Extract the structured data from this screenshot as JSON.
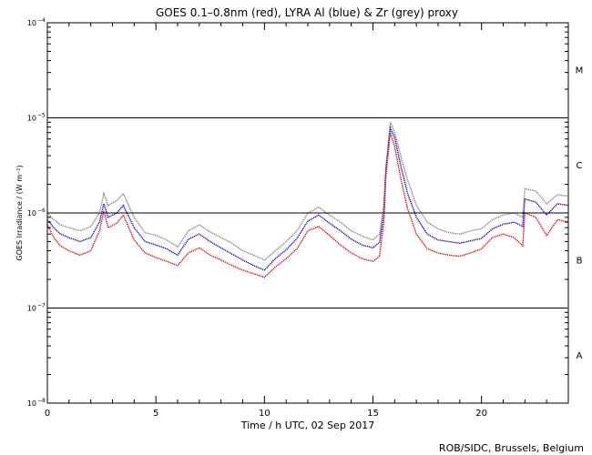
{
  "chart_data": {
    "type": "line",
    "title": "GOES 0.1–0.8nm (red), LYRA Al (blue) & Zr (grey) proxy",
    "xlabel": "Time / h UTC, 02 Sep 2017",
    "ylabel": "GOES Irradiance / (W m⁻²)",
    "xlim": [
      0,
      24
    ],
    "ylim": [
      1e-08,
      0.0001
    ],
    "yscale": "log",
    "grid": false,
    "x_ticks": [
      0,
      5,
      10,
      15,
      20
    ],
    "x_tick_labels": [
      "0",
      "5",
      "10",
      "15",
      "20"
    ],
    "y_ticks": [
      1e-08,
      1e-07,
      1e-06,
      1e-05,
      0.0001
    ],
    "y_tick_labels": [
      {
        "base": "10",
        "exp": "−8"
      },
      {
        "base": "10",
        "exp": "−7"
      },
      {
        "base": "10",
        "exp": "−6"
      },
      {
        "base": "10",
        "exp": "−5"
      },
      {
        "base": "10",
        "exp": "−4"
      }
    ],
    "flare_class_lines": [
      1e-07,
      1e-06,
      1e-05
    ],
    "flare_classes": [
      {
        "label": "A",
        "y": 3.2e-08
      },
      {
        "label": "B",
        "y": 3.2e-07
      },
      {
        "label": "C",
        "y": 3.2e-06
      },
      {
        "label": "M",
        "y": 3.2e-05
      }
    ],
    "series": [
      {
        "color": "#808080",
        "x": [
          0,
          0.3,
          0.6,
          1.0,
          1.5,
          2.0,
          2.4,
          2.6,
          2.8,
          3.2,
          3.5,
          4.0,
          4.5,
          5.0,
          5.5,
          6.0,
          6.5,
          7.0,
          7.5,
          8.0,
          8.5,
          9.0,
          9.5,
          10.0,
          10.5,
          11.0,
          11.5,
          12.0,
          12.5,
          13.0,
          13.5,
          14.0,
          14.5,
          15.0,
          15.3,
          15.5,
          15.6,
          15.8,
          16.0,
          16.3,
          16.6,
          17.0,
          17.5,
          18.0,
          18.5,
          19.0,
          19.5,
          20.0,
          20.5,
          21.0,
          21.5,
          21.9,
          22.0,
          22.5,
          23.0,
          23.5,
          24.0
        ],
        "y": [
          1e-06,
          8.5e-07,
          7.5e-07,
          7e-07,
          6.5e-07,
          7.2e-07,
          1e-06,
          1.6e-06,
          1.2e-06,
          1.35e-06,
          1.6e-06,
          9e-07,
          6.2e-07,
          5.8e-07,
          5.2e-07,
          4.4e-07,
          6.5e-07,
          7.5e-07,
          6.3e-07,
          5.5e-07,
          4.8e-07,
          4e-07,
          3.6e-07,
          3.2e-07,
          4e-07,
          5e-07,
          6.5e-07,
          1e-06,
          1.15e-06,
          9.5e-07,
          8e-07,
          6.5e-07,
          5.7e-07,
          5.2e-07,
          6e-07,
          1.2e-06,
          3.2e-06,
          9e-06,
          7e-06,
          3.8e-06,
          2.2e-06,
          1.2e-06,
          8e-07,
          6.8e-07,
          6.2e-07,
          6e-07,
          6.5e-07,
          6.8e-07,
          8.5e-07,
          9.5e-07,
          1e-06,
          9e-07,
          1.8e-06,
          1.7e-06,
          1.25e-06,
          1.55e-06,
          1.5e-06
        ]
      },
      {
        "color": "#0000cc",
        "x": [
          0,
          0.3,
          0.6,
          1.0,
          1.5,
          2.0,
          2.4,
          2.6,
          2.8,
          3.2,
          3.5,
          4.0,
          4.5,
          5.0,
          5.5,
          6.0,
          6.5,
          7.0,
          7.5,
          8.0,
          8.5,
          9.0,
          9.5,
          10.0,
          10.5,
          11.0,
          11.5,
          12.0,
          12.5,
          13.0,
          13.5,
          14.0,
          14.5,
          15.0,
          15.3,
          15.5,
          15.6,
          15.8,
          16.0,
          16.3,
          16.6,
          17.0,
          17.5,
          18.0,
          18.5,
          19.0,
          19.5,
          20.0,
          20.5,
          21.0,
          21.5,
          21.9,
          22.0,
          22.5,
          23.0,
          23.5,
          24.0
        ],
        "y": [
          8.5e-07,
          7e-07,
          6e-07,
          5.5e-07,
          5e-07,
          5.5e-07,
          8e-07,
          1.25e-06,
          9e-07,
          1e-06,
          1.2e-06,
          7e-07,
          5e-07,
          4.6e-07,
          4.2e-07,
          3.6e-07,
          5.3e-07,
          6e-07,
          5e-07,
          4.3e-07,
          3.7e-07,
          3.2e-07,
          2.8e-07,
          2.5e-07,
          3.3e-07,
          4.1e-07,
          5.4e-07,
          8.2e-07,
          9.5e-07,
          7.8e-07,
          6.5e-07,
          5.3e-07,
          4.6e-07,
          4.3e-07,
          4.9e-07,
          1e-06,
          2.8e-06,
          7.8e-06,
          6.2e-06,
          3e-06,
          1.6e-06,
          9e-07,
          6e-07,
          5.2e-07,
          5e-07,
          4.8e-07,
          5.1e-07,
          5.4e-07,
          6.8e-07,
          7.6e-07,
          8e-07,
          7.2e-07,
          1.4e-06,
          1.3e-06,
          9.5e-07,
          1.25e-06,
          1.2e-06
        ]
      },
      {
        "color": "#e00000",
        "x": [
          0,
          0.3,
          0.6,
          1.0,
          1.5,
          2.0,
          2.4,
          2.6,
          2.8,
          3.2,
          3.5,
          4.0,
          4.5,
          5.0,
          5.5,
          6.0,
          6.5,
          7.0,
          7.5,
          8.0,
          8.5,
          9.0,
          9.5,
          10.0,
          10.5,
          11.0,
          11.5,
          12.0,
          12.5,
          13.0,
          13.5,
          14.0,
          14.5,
          15.0,
          15.3,
          15.5,
          15.6,
          15.8,
          16.0,
          16.3,
          16.6,
          17.0,
          17.5,
          18.0,
          18.5,
          19.0,
          19.5,
          20.0,
          20.5,
          21.0,
          21.5,
          21.9,
          22.0,
          22.5,
          23.0,
          23.5,
          24.0
        ],
        "y": [
          7.5e-07,
          5.5e-07,
          4.5e-07,
          4e-07,
          3.6e-07,
          4e-07,
          6.5e-07,
          1.05e-06,
          7e-07,
          7.8e-07,
          9.5e-07,
          5.2e-07,
          3.8e-07,
          3.4e-07,
          3.1e-07,
          2.8e-07,
          3.8e-07,
          4.3e-07,
          3.6e-07,
          3.2e-07,
          2.8e-07,
          2.5e-07,
          2.3e-07,
          2.1e-07,
          2.7e-07,
          3.3e-07,
          4.2e-07,
          6.5e-07,
          7.2e-07,
          5.8e-07,
          4.6e-07,
          3.8e-07,
          3.3e-07,
          3.1e-07,
          3.5e-07,
          8e-07,
          2.5e-06,
          7e-06,
          5e-06,
          2.2e-06,
          1.1e-06,
          6e-07,
          4.2e-07,
          3.8e-07,
          3.6e-07,
          3.5e-07,
          3.8e-07,
          4.2e-07,
          5.5e-07,
          6e-07,
          5.5e-07,
          4.5e-07,
          1e-06,
          9e-07,
          5.8e-07,
          8.5e-07,
          8e-07
        ]
      }
    ]
  },
  "credit": "ROB/SIDC, Brussels, Belgium"
}
